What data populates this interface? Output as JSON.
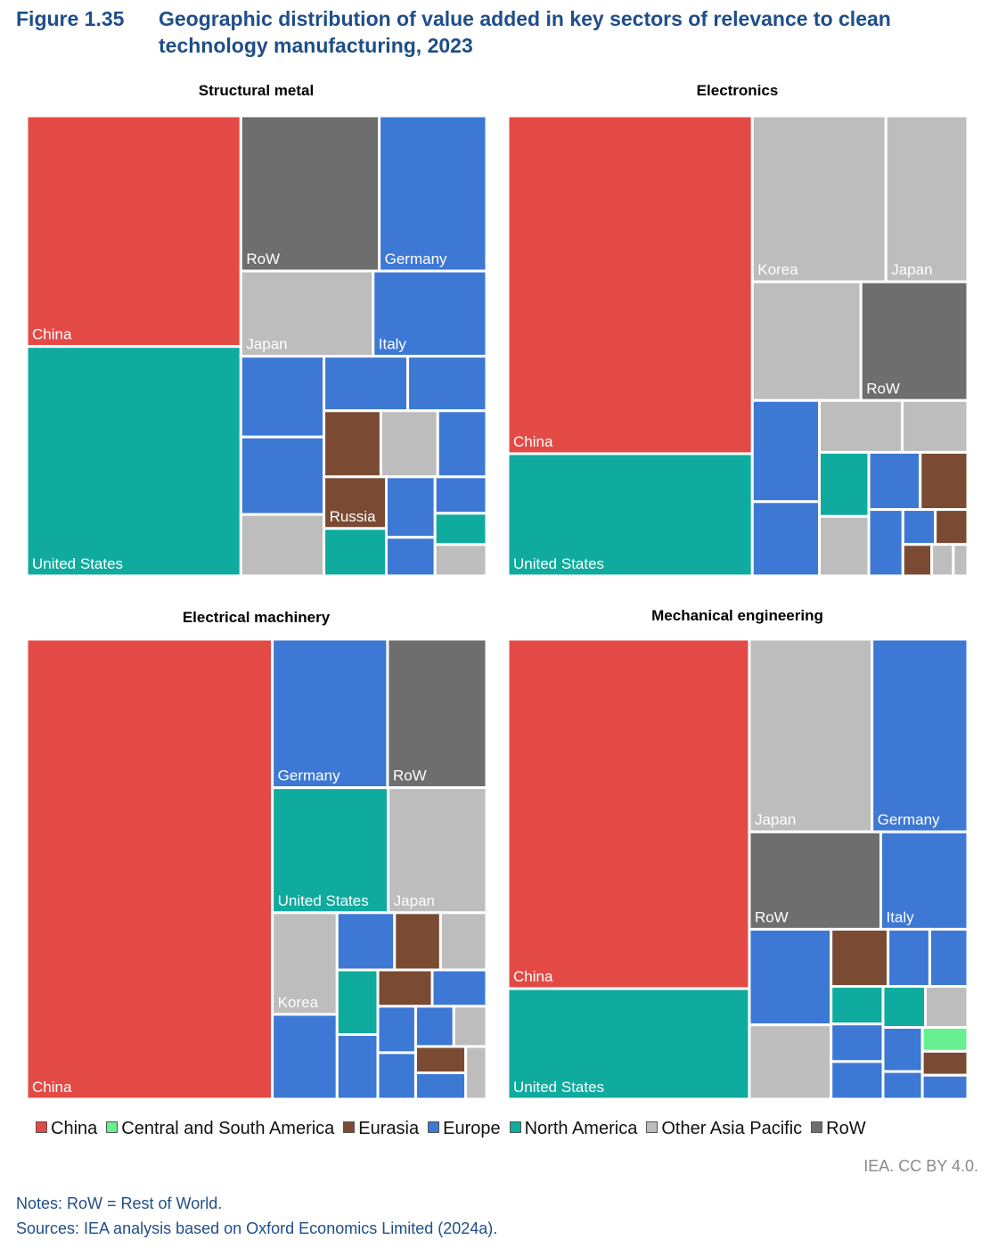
{
  "figure": {
    "number": "Figure 1.35",
    "title": "Geographic distribution of value added in key sectors of relevance to clean technology manufacturing, 2023"
  },
  "colors": {
    "China": "#e34a46",
    "Central and South America": "#66f08f",
    "Eurasia": "#7b4a33",
    "Europe": "#3d78d4",
    "North America": "#0fab9e",
    "Other Asia Pacific": "#bdbdbd",
    "RoW": "#6e6e6e"
  },
  "legend": [
    "China",
    "Central and South America",
    "Eurasia",
    "Europe",
    "North America",
    "Other Asia Pacific",
    "RoW"
  ],
  "chart_data": [
    {
      "type": "treemap",
      "title": "Structural metal",
      "items": [
        {
          "label": "China",
          "region": "China",
          "share": 18.4
        },
        {
          "label": "United States",
          "region": "North America",
          "share": 18.3
        },
        {
          "label": "RoW",
          "region": "RoW",
          "share": 8.0
        },
        {
          "label": "Germany",
          "region": "Europe",
          "share": 6.2
        },
        {
          "label": "Japan",
          "region": "Other Asia Pacific",
          "share": 4.2
        },
        {
          "label": "Italy",
          "region": "Europe",
          "share": 3.6
        },
        {
          "label": "",
          "region": "Europe",
          "share": 2.5
        },
        {
          "label": "",
          "region": "Europe",
          "share": 2.4
        },
        {
          "label": "",
          "region": "Europe",
          "share": 1.7
        },
        {
          "label": "",
          "region": "Eurasia",
          "share": 1.4
        },
        {
          "label": "",
          "region": "Europe",
          "share": 1.2
        },
        {
          "label": "",
          "region": "Europe",
          "share": 1.6
        },
        {
          "label": "Russia",
          "region": "Eurasia",
          "share": 1.2
        },
        {
          "label": "",
          "region": "North America",
          "share": 1.1
        },
        {
          "label": "",
          "region": "Other Asia Pacific",
          "share": 1.9
        },
        {
          "label": "",
          "region": "Other Asia Pacific",
          "share": 1.4
        },
        {
          "label": "",
          "region": "Europe",
          "share": 1.1
        },
        {
          "label": "",
          "region": "Europe",
          "share": 0.7
        },
        {
          "label": "",
          "region": "Europe",
          "share": 0.7
        },
        {
          "label": "",
          "region": "North America",
          "share": 0.6
        },
        {
          "label": "",
          "region": "Other Asia Pacific",
          "share": 0.6
        }
      ]
    },
    {
      "type": "treemap",
      "title": "Electronics",
      "items": [
        {
          "label": "China",
          "region": "China",
          "share": 36.5
        },
        {
          "label": "United States",
          "region": "North America",
          "share": 13.2
        },
        {
          "label": "Korea",
          "region": "Other Asia Pacific",
          "share": 9.8
        },
        {
          "label": "Japan",
          "region": "Other Asia Pacific",
          "share": 6.0
        },
        {
          "label": "",
          "region": "Other Asia Pacific",
          "share": 5.7
        },
        {
          "label": "RoW",
          "region": "RoW",
          "share": 5.6
        },
        {
          "label": "",
          "region": "Europe",
          "share": 3.0
        },
        {
          "label": "",
          "region": "Europe",
          "share": 2.2
        },
        {
          "label": "",
          "region": "Other Asia Pacific",
          "share": 1.9
        },
        {
          "label": "",
          "region": "North America",
          "share": 1.4
        },
        {
          "label": "",
          "region": "Other Asia Pacific",
          "share": 1.5
        },
        {
          "label": "",
          "region": "Other Asia Pacific",
          "share": 1.3
        },
        {
          "label": "",
          "region": "Europe",
          "share": 1.3
        },
        {
          "label": "",
          "region": "Eurasia",
          "share": 1.2
        },
        {
          "label": "",
          "region": "Europe",
          "share": 1.0
        },
        {
          "label": "",
          "region": "Europe",
          "share": 0.5
        },
        {
          "label": "",
          "region": "Eurasia",
          "share": 0.5
        },
        {
          "label": "",
          "region": "Eurasia",
          "share": 0.4
        },
        {
          "label": "",
          "region": "Other Asia Pacific",
          "share": 0.3
        },
        {
          "label": "",
          "region": "Other Asia Pacific",
          "share": 0.2
        }
      ]
    },
    {
      "type": "treemap",
      "title": "Electrical machinery",
      "items": [
        {
          "label": "China",
          "region": "China",
          "share": 51.5
        },
        {
          "label": "Germany",
          "region": "Europe",
          "share": 7.8
        },
        {
          "label": "RoW",
          "region": "RoW",
          "share": 6.7
        },
        {
          "label": "United States",
          "region": "North America",
          "share": 6.6
        },
        {
          "label": "Japan",
          "region": "Other Asia Pacific",
          "share": 5.6
        },
        {
          "label": "Korea",
          "region": "Other Asia Pacific",
          "share": 3.0
        },
        {
          "label": "",
          "region": "Europe",
          "share": 2.5
        },
        {
          "label": "",
          "region": "Eurasia",
          "share": 1.2
        },
        {
          "label": "",
          "region": "Other Asia Pacific",
          "share": 1.2
        },
        {
          "label": "",
          "region": "North America",
          "share": 1.2
        },
        {
          "label": "",
          "region": "Europe",
          "share": 1.5
        },
        {
          "label": "",
          "region": "Europe",
          "share": 1.2
        },
        {
          "label": "",
          "region": "Eurasia",
          "share": 0.9
        },
        {
          "label": "",
          "region": "Europe",
          "share": 0.9
        },
        {
          "label": "",
          "region": "Europe",
          "share": 0.8
        },
        {
          "label": "",
          "region": "Europe",
          "share": 0.7
        },
        {
          "label": "",
          "region": "Other Asia Pacific",
          "share": 0.6
        },
        {
          "label": "",
          "region": "Eurasia",
          "share": 0.6
        },
        {
          "label": "",
          "region": "Europe",
          "share": 0.8
        },
        {
          "label": "",
          "region": "Other Asia Pacific",
          "share": 0.5
        },
        {
          "label": "",
          "region": "Europe",
          "share": 0.6
        }
      ]
    },
    {
      "type": "treemap",
      "title": "Mechanical engineering",
      "items": [
        {
          "label": "China",
          "region": "China",
          "share": 38.9
        },
        {
          "label": "United States",
          "region": "North America",
          "share": 12.3
        },
        {
          "label": "Japan",
          "region": "Other Asia Pacific",
          "share": 10.9
        },
        {
          "label": "Germany",
          "region": "Europe",
          "share": 8.5
        },
        {
          "label": "RoW",
          "region": "RoW",
          "share": 5.9
        },
        {
          "label": "Italy",
          "region": "Europe",
          "share": 3.9
        },
        {
          "label": "",
          "region": "Other Asia Pacific",
          "share": 2.8
        },
        {
          "label": "",
          "region": "Europe",
          "share": 3.6
        },
        {
          "label": "",
          "region": "Eurasia",
          "share": 1.5
        },
        {
          "label": "",
          "region": "Europe",
          "share": 1.1
        },
        {
          "label": "",
          "region": "Europe",
          "share": 1.0
        },
        {
          "label": "",
          "region": "North America",
          "share": 0.9
        },
        {
          "label": "",
          "region": "Europe",
          "share": 0.9
        },
        {
          "label": "",
          "region": "Europe",
          "share": 0.9
        },
        {
          "label": "",
          "region": "North America",
          "share": 0.8
        },
        {
          "label": "",
          "region": "Other Asia Pacific",
          "share": 0.8
        },
        {
          "label": "",
          "region": "Europe",
          "share": 0.8
        },
        {
          "label": "",
          "region": "Europe",
          "share": 0.5
        },
        {
          "label": "",
          "region": "Central and South America",
          "share": 0.5
        },
        {
          "label": "",
          "region": "Eurasia",
          "share": 0.5
        },
        {
          "label": "",
          "region": "Europe",
          "share": 0.5
        }
      ]
    }
  ],
  "credit": "IEA. CC BY 4.0.",
  "notes": "Notes: RoW = Rest of World.",
  "sources": "Sources: IEA analysis based on Oxford Economics Limited (2024a)."
}
